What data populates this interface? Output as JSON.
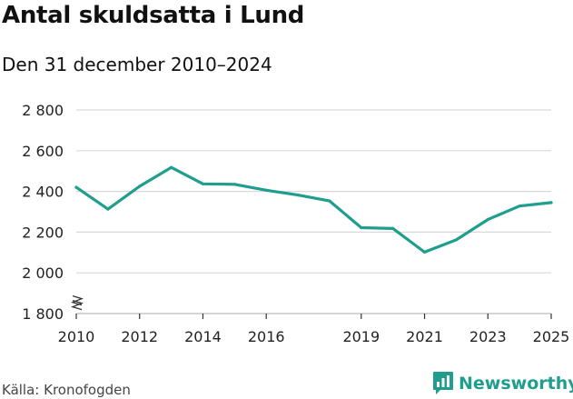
{
  "title": "Antal skuldsatta i Lund",
  "subtitle": "Den 31 december 2010–2024",
  "source": "Källa: Kronofogden",
  "brand": {
    "name": "Newsworthy",
    "icon": "bar-chart-icon",
    "color": "#1f9e8e"
  },
  "chart_data": {
    "type": "line",
    "title": "Antal skuldsatta i Lund",
    "subtitle": "Den 31 december 2010–2024",
    "xlabel": "",
    "ylabel": "",
    "x": [
      2010,
      2011,
      2012,
      2013,
      2014,
      2015,
      2016,
      2017,
      2018,
      2019,
      2020,
      2021,
      2022,
      2023,
      2024,
      2025
    ],
    "series": [
      {
        "values": [
          2420,
          2313,
          2425,
          2518,
          2437,
          2435,
          2406,
          2382,
          2353,
          2222,
          2218,
          2102,
          2162,
          2262,
          2328,
          2345
        ]
      }
    ],
    "xticks": [
      "2010",
      "2012",
      "2014",
      "2016",
      "2019",
      "2021",
      "2023",
      "2025"
    ],
    "yticks": [
      "1 800",
      "2 000",
      "2 200",
      "2 400",
      "2 600",
      "2 800"
    ],
    "ytick_values": [
      1800,
      2000,
      2200,
      2400,
      2600,
      2800
    ],
    "xtick_values": [
      2010,
      2012,
      2014,
      2016,
      2019,
      2021,
      2023,
      2025
    ],
    "ylim": [
      1800,
      2800
    ],
    "xlim": [
      2010,
      2025
    ],
    "axis_break": true,
    "grid": true,
    "color": "#1f9e8e"
  }
}
